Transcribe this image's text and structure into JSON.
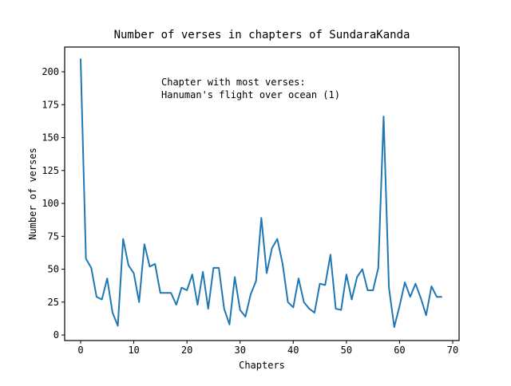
{
  "chart_data": {
    "type": "line",
    "title": "Number of verses in chapters of SundaraKanda",
    "x_label": "Chapters",
    "y_label": "Number of verses",
    "annotation": [
      "Chapter with most verses:",
      "Hanuman's flight over ocean (1)"
    ],
    "x": [
      0,
      1,
      2,
      3,
      4,
      5,
      6,
      7,
      8,
      9,
      10,
      11,
      12,
      13,
      14,
      15,
      16,
      17,
      18,
      19,
      20,
      21,
      22,
      23,
      24,
      25,
      26,
      27,
      28,
      29,
      30,
      31,
      32,
      33,
      34,
      35,
      36,
      37,
      38,
      39,
      40,
      41,
      42,
      43,
      44,
      45,
      46,
      47,
      48,
      49,
      50,
      51,
      52,
      53,
      54,
      55,
      56,
      57,
      58,
      59,
      60,
      61,
      62,
      63,
      64,
      65,
      66,
      67,
      68
    ],
    "series": [
      {
        "name": "verses",
        "color": "#1f77b4",
        "values": [
          210,
          58,
          51,
          29,
          27,
          43,
          17,
          7,
          73,
          53,
          47,
          25,
          69,
          52,
          54,
          32,
          32,
          32,
          23,
          36,
          34,
          46,
          23,
          48,
          20,
          51,
          51,
          20,
          8,
          44,
          19,
          14,
          31,
          41,
          89,
          47,
          66,
          73,
          54,
          25,
          21,
          43,
          25,
          20,
          17,
          39,
          38,
          61,
          20,
          19,
          46,
          27,
          44,
          50,
          34,
          34,
          51,
          166,
          36,
          6,
          22,
          40,
          29,
          39,
          28,
          15,
          37,
          29,
          29
        ]
      }
    ],
    "xlim": [
      -3.0,
      71.2
    ],
    "xticks": [
      0,
      10,
      20,
      30,
      40,
      50,
      60,
      70
    ],
    "ylim": [
      -4.2,
      218.8
    ],
    "yticks": [
      0,
      25,
      50,
      75,
      100,
      125,
      150,
      175,
      200
    ]
  }
}
